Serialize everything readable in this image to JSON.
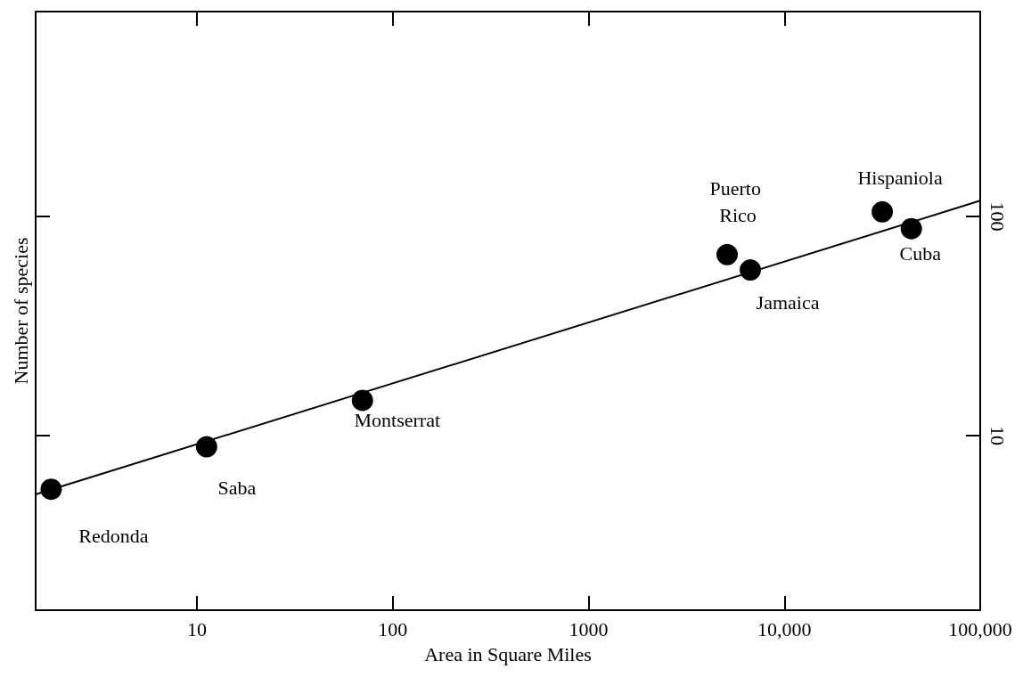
{
  "chart_data": {
    "type": "scatter",
    "xlabel": "Area in Square Miles",
    "ylabel": "Number of species",
    "log": "xy",
    "xlim": [
      1.5,
      100000
    ],
    "xticks": [
      10,
      100,
      1000,
      {
        "value": 10000,
        "label": "10,000"
      },
      {
        "value": 100000,
        "label": "100,000"
      }
    ],
    "ylim": [
      1.6,
      860
    ],
    "yticks": [
      10,
      100
    ],
    "grid": false,
    "series": [
      {
        "marker": "circle",
        "color": "#000000",
        "x": [
          1.8,
          11.2,
          70,
          5100,
          6700,
          31600,
          44500
        ],
        "values": [
          5.7,
          8.9,
          14.5,
          67,
          57,
          105,
          88
        ]
      },
      {
        "type": "line",
        "marker": "none",
        "color": "#000000",
        "x": [
          1.5,
          100000
        ],
        "values": [
          5.4,
          118
        ]
      }
    ],
    "annotations": [
      {
        "text": "Redonda",
        "x": 1.8,
        "y": 5.7
      },
      {
        "text": "Saba",
        "x": 11.2,
        "y": 8.9
      },
      {
        "text": "Montserrat",
        "x": 70,
        "y": 14.5
      },
      {
        "text": "Puerto Rico",
        "x": 5100,
        "y": 67
      },
      {
        "text": "Jamaica",
        "x": 6700,
        "y": 57
      },
      {
        "text": "Hispaniola",
        "x": 31600,
        "y": 105
      },
      {
        "text": "Cuba",
        "x": 44500,
        "y": 88
      }
    ]
  }
}
